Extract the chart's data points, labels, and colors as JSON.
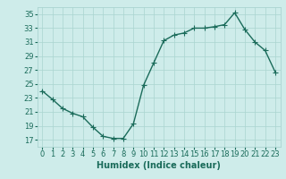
{
  "x": [
    0,
    1,
    2,
    3,
    4,
    5,
    6,
    7,
    8,
    9,
    10,
    11,
    12,
    13,
    14,
    15,
    16,
    17,
    18,
    19,
    20,
    21,
    22,
    23
  ],
  "y": [
    24.0,
    22.8,
    21.5,
    20.8,
    20.3,
    18.8,
    17.5,
    17.2,
    17.2,
    19.3,
    24.8,
    28.0,
    31.2,
    32.0,
    32.3,
    33.0,
    33.0,
    33.2,
    33.5,
    35.2,
    32.8,
    31.0,
    29.8,
    26.7
  ],
  "line_color": "#1a6b5a",
  "marker": "+",
  "markersize": 4,
  "linewidth": 1.0,
  "bg_color": "#ceecea",
  "grid_color": "#aad4d0",
  "xlabel": "Humidex (Indice chaleur)",
  "xlabel_fontsize": 7,
  "tick_fontsize": 6,
  "ylim": [
    16,
    36
  ],
  "xlim": [
    -0.5,
    23.5
  ],
  "yticks": [
    17,
    19,
    21,
    23,
    25,
    27,
    29,
    31,
    33,
    35
  ],
  "xticks": [
    0,
    1,
    2,
    3,
    4,
    5,
    6,
    7,
    8,
    9,
    10,
    11,
    12,
    13,
    14,
    15,
    16,
    17,
    18,
    19,
    20,
    21,
    22,
    23
  ]
}
